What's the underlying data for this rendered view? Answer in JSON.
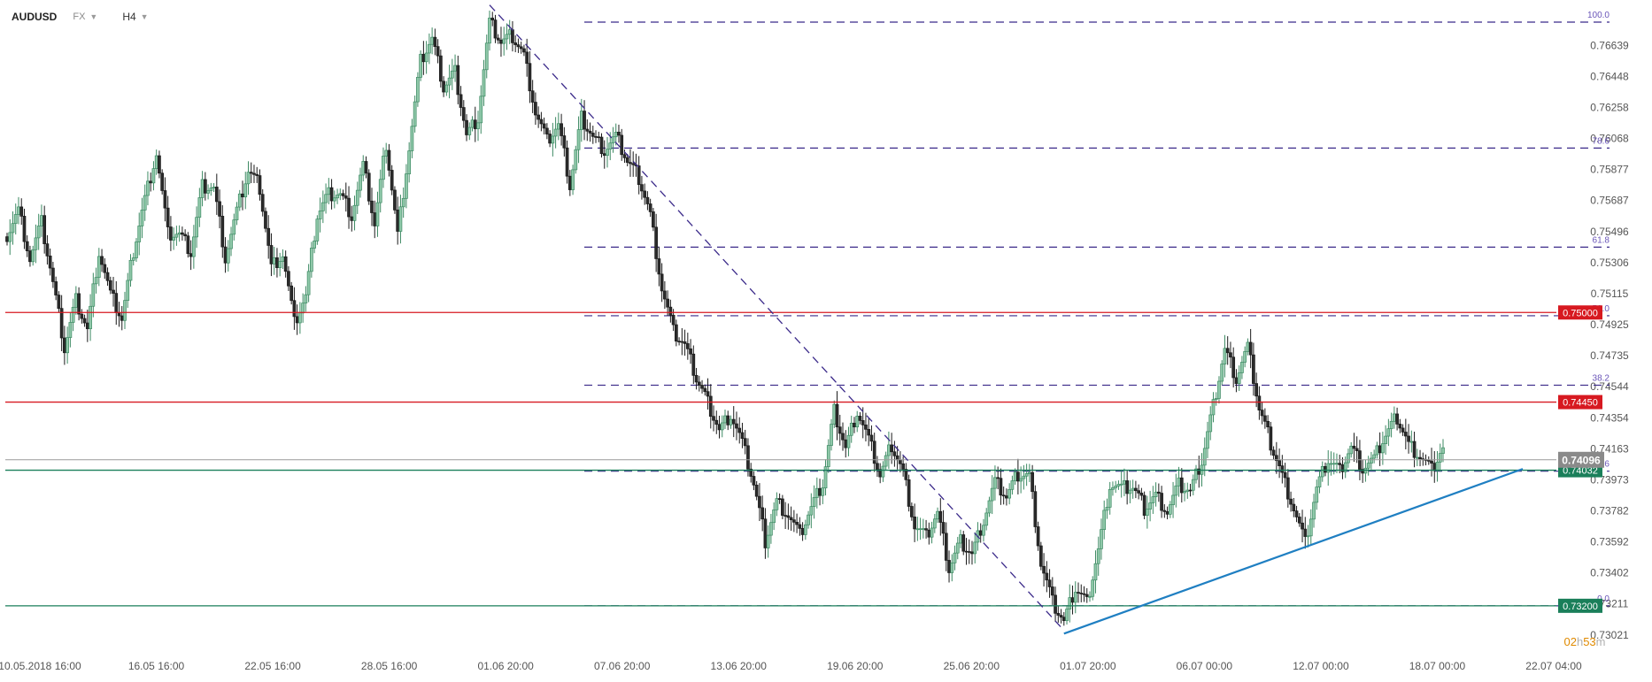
{
  "header": {
    "symbol": "AUDUSD",
    "market": "FX",
    "timeframe": "H4"
  },
  "chart_data": {
    "type": "candlestick",
    "y_ticks": [
      "0.76639",
      "0.76448",
      "0.76258",
      "0.76068",
      "0.75877",
      "0.75687",
      "0.75496",
      "0.75306",
      "0.75115",
      "0.74925",
      "0.74735",
      "0.74544",
      "0.74354",
      "0.74163",
      "0.73973",
      "0.73782",
      "0.73592",
      "0.73402",
      "0.73211",
      "0.73021"
    ],
    "x_ticks": [
      "10.05.2018  16:00",
      "16.05  16:00",
      "22.05  16:00",
      "28.05  16:00",
      "01.06  20:00",
      "07.06  20:00",
      "13.06  20:00",
      "19.06  20:00",
      "25.06  20:00",
      "01.07  20:00",
      "06.07  00:00",
      "12.07  00:00",
      "18.07  00:00",
      "22.07  04:00"
    ],
    "ylim": [
      0.7302,
      0.7682
    ],
    "levels": [
      {
        "label": "0.75000",
        "value": 0.75,
        "color": "#d71920"
      },
      {
        "label": "0.74450",
        "value": 0.7445,
        "color": "#d71920"
      },
      {
        "label": "0.74032",
        "value": 0.74032,
        "color": "#1a7f5a"
      },
      {
        "label": "0.73200",
        "value": 0.732,
        "color": "#1a7f5a"
      }
    ],
    "current_price": {
      "label": "0.74096",
      "value": 0.74096,
      "color": "#8a8a8a"
    },
    "countdown": {
      "hours": "02",
      "h_unit": "h",
      "minutes": "53",
      "m_unit": "m"
    },
    "fibonacci": [
      {
        "label": "100.0",
        "value": 0.76782
      },
      {
        "label": "78.6",
        "value": 0.76009
      },
      {
        "label": "61.8",
        "value": 0.75401
      },
      {
        "label": "50.0",
        "value": 0.7498
      },
      {
        "label": "38.2",
        "value": 0.74554
      },
      {
        "label": "23.6",
        "value": 0.74026
      },
      {
        "label": "0.0",
        "value": 0.732
      }
    ],
    "candle_anchors": [
      0.7548,
      0.7563,
      0.7533,
      0.7555,
      0.7518,
      0.7478,
      0.7508,
      0.749,
      0.7538,
      0.7511,
      0.7496,
      0.7538,
      0.757,
      0.7598,
      0.7548,
      0.7548,
      0.7537,
      0.7578,
      0.7577,
      0.7534,
      0.7562,
      0.7587,
      0.7577,
      0.7528,
      0.7536,
      0.7493,
      0.751,
      0.756,
      0.7573,
      0.7573,
      0.756,
      0.759,
      0.7554,
      0.7604,
      0.7548,
      0.7601,
      0.7654,
      0.7668,
      0.7638,
      0.7648,
      0.7609,
      0.762,
      0.7678,
      0.7666,
      0.767,
      0.7658,
      0.7623,
      0.7605,
      0.7615,
      0.7578,
      0.762,
      0.7608,
      0.76,
      0.7608,
      0.7593,
      0.7583,
      0.756,
      0.7515,
      0.7488,
      0.748,
      0.746,
      0.7445,
      0.7428,
      0.7438,
      0.742,
      0.7395,
      0.736,
      0.7384,
      0.7376,
      0.7363,
      0.738,
      0.7395,
      0.744,
      0.7417,
      0.744,
      0.7422,
      0.74,
      0.7419,
      0.7402,
      0.7369,
      0.7362,
      0.7377,
      0.7343,
      0.736,
      0.7352,
      0.7373,
      0.7396,
      0.7387,
      0.7401,
      0.74,
      0.7346,
      0.7322,
      0.731,
      0.7331,
      0.7322,
      0.7355,
      0.7395,
      0.7392,
      0.7393,
      0.738,
      0.7388,
      0.7378,
      0.7394,
      0.739,
      0.7409,
      0.7443,
      0.7478,
      0.746,
      0.7479,
      0.7441,
      0.742,
      0.74,
      0.738,
      0.7358,
      0.7392,
      0.741,
      0.7403,
      0.7418,
      0.7405,
      0.741,
      0.7425,
      0.7436,
      0.7419,
      0.7412,
      0.7403,
      0.7417
    ]
  },
  "annotations": {
    "downtrend": {
      "from": "01.06  20:00",
      "to": "01.07  20:00"
    },
    "uptrend": {
      "from": "01.07  20:00",
      "to": "18.07  00:00"
    }
  }
}
